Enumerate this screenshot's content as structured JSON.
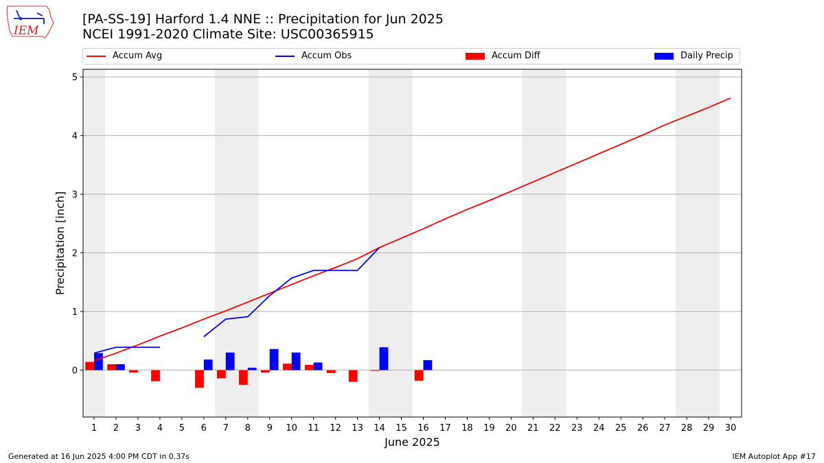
{
  "title": {
    "line1": "[PA-SS-19] Harford 1.4 NNE :: Precipitation for Jun 2025",
    "line2": "NCEI 1991-2020 Climate Site: USC00365915"
  },
  "logo_text": "IEM",
  "footer": {
    "left": "Generated at 16 Jun 2025 4:00 PM CDT in 0.37s",
    "right": "IEM Autoplot App #17"
  },
  "colors": {
    "avg": "#ff0000",
    "obs": "#0000ff",
    "diff": "#ff0000",
    "daily": "#0000ff",
    "weekend": "#eeeeee",
    "grid": "#b0b0b0"
  },
  "chart_data": {
    "type": "bar",
    "xlabel": "June 2025",
    "ylabel": "Precipitation [inch]",
    "xlim": [
      0.5,
      30.5
    ],
    "ylim": [
      -0.8,
      5.13
    ],
    "yticks": [
      0,
      1,
      2,
      3,
      4,
      5
    ],
    "days": [
      1,
      2,
      3,
      4,
      5,
      6,
      7,
      8,
      9,
      10,
      11,
      12,
      13,
      14,
      15,
      16,
      17,
      18,
      19,
      20,
      21,
      22,
      23,
      24,
      25,
      26,
      27,
      28,
      29,
      30
    ],
    "weekend_spans": [
      [
        0.5,
        1.5
      ],
      [
        6.5,
        8.5
      ],
      [
        13.5,
        15.5
      ],
      [
        20.5,
        22.5
      ],
      [
        27.5,
        29.5
      ]
    ],
    "grid": "horizontal",
    "legend_position": "top",
    "series": [
      {
        "name": "Accum Avg",
        "kind": "line",
        "x": [
          1,
          2,
          3,
          4,
          5,
          6,
          7,
          8,
          9,
          10,
          11,
          12,
          13,
          14,
          15,
          16,
          17,
          18,
          19,
          20,
          21,
          22,
          23,
          24,
          25,
          26,
          27,
          28,
          29,
          30
        ],
        "y": [
          0.16,
          0.29,
          0.43,
          0.58,
          0.72,
          0.87,
          1.01,
          1.16,
          1.31,
          1.46,
          1.61,
          1.75,
          1.9,
          2.09,
          2.25,
          2.41,
          2.58,
          2.74,
          2.89,
          3.05,
          3.21,
          3.37,
          3.53,
          3.69,
          3.85,
          4.01,
          4.18,
          4.33,
          4.48,
          4.64
        ]
      },
      {
        "name": "Accum Obs",
        "kind": "line",
        "segments": [
          {
            "x": [
              1,
              2,
              3,
              4
            ],
            "y": [
              0.29,
              0.39,
              0.39,
              0.39
            ]
          },
          {
            "x": [
              6,
              7,
              8,
              9,
              10,
              11,
              12,
              13,
              14
            ],
            "y": [
              0.57,
              0.87,
              0.91,
              1.27,
              1.57,
              1.7,
              1.7,
              1.7,
              2.09
            ]
          }
        ]
      },
      {
        "name": "Accum Diff",
        "kind": "bar",
        "x": [
          1,
          2,
          3,
          4,
          6,
          7,
          8,
          9,
          10,
          11,
          12,
          13,
          14,
          16
        ],
        "y": [
          0.14,
          0.1,
          -0.04,
          -0.19,
          -0.3,
          -0.14,
          -0.25,
          -0.04,
          0.11,
          0.09,
          -0.05,
          -0.2,
          -0.01,
          -0.18
        ]
      },
      {
        "name": "Daily Precip",
        "kind": "bar",
        "x": [
          1,
          2,
          6,
          7,
          8,
          9,
          10,
          11,
          14,
          16
        ],
        "y": [
          0.29,
          0.1,
          0.18,
          0.3,
          0.04,
          0.36,
          0.3,
          0.13,
          0.39,
          0.17
        ]
      }
    ]
  }
}
